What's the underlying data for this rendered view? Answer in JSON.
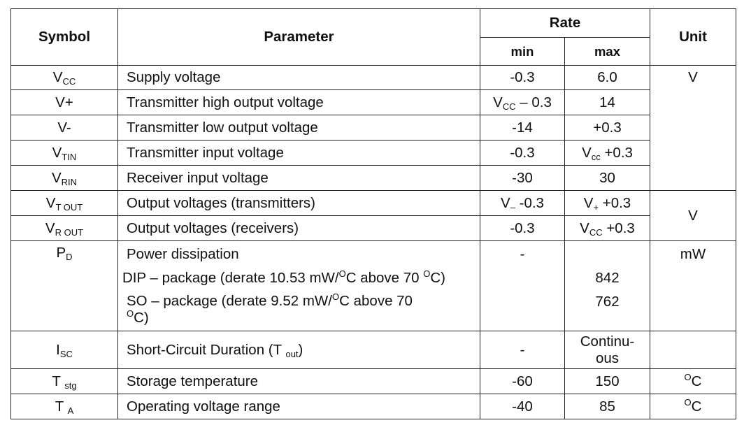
{
  "headers": {
    "symbol": "Symbol",
    "parameter": "Parameter",
    "rate": "Rate",
    "min": "min",
    "max": "max",
    "unit": "Unit"
  },
  "rows": [
    {
      "sym_main": "V",
      "sym_sub": "CC",
      "param": "Supply voltage",
      "min": "-0.3",
      "max": "6.0",
      "unit": "V"
    },
    {
      "sym_main": "V+",
      "param": "Transmitter high output voltage",
      "min_main": "V",
      "min_sub": "CC",
      "min_rest": " – 0.3",
      "max": "14"
    },
    {
      "sym_main": "V-",
      "param": "Transmitter low output voltage",
      "min": "-14",
      "max": "+0.3"
    },
    {
      "sym_main": "V",
      "sym_sub": "TIN",
      "param": "Transmitter input voltage",
      "min": "-0.3",
      "max_main": "V",
      "max_sub": "cc",
      "max_rest": " +0.3"
    },
    {
      "sym_main": "V",
      "sym_sub": "RIN",
      "param": "Receiver input voltage",
      "min": "-30",
      "max": "30"
    },
    {
      "sym_main": "V",
      "sym_sub": "T OUT",
      "param": "Output voltages (transmitters)",
      "min_main": "V",
      "min_sub": "–",
      "min_rest": " -0.3",
      "max_main": "V",
      "max_sub": "+",
      "max_rest": " +0.3",
      "unit": "V"
    },
    {
      "sym_main": "V",
      "sym_sub": "R OUT",
      "param": "Output voltages (receivers)",
      "min": "-0.3",
      "max_main": "V",
      "max_sub": "CC",
      "max_rest": " +0.3"
    },
    {
      "sym_main": "P",
      "sym_sub": "D",
      "param": "Power dissipation",
      "param2_a": "DIP – package (derate 10.53 mW/",
      "param2_sup1": "O",
      "param2_b": "C above 70 ",
      "param2_sup2": "O",
      "param2_c": "C)",
      "param3_a": "SO – package (derate 9.52 mW/",
      "param3_sup1": "O",
      "param3_b": "C above 70",
      "param3_sup2": "O",
      "param3_c": "C)",
      "min": "-",
      "max2": "842",
      "max3": "762",
      "unit": "mW"
    },
    {
      "sym_main": "I",
      "sym_sub": "SC",
      "param_a": "Short-Circuit Duration (T ",
      "param_sub": "out",
      "param_c": ")",
      "min": "-",
      "max_line1": "Continu-",
      "max_line2": "ous"
    },
    {
      "sym_main": "T ",
      "sym_sub": "stg",
      "param": "Storage temperature",
      "min": "-60",
      "max": "150",
      "unit_sup": "O",
      "unit_rest": "C"
    },
    {
      "sym_main": "T ",
      "sym_sub": "A",
      "param": "Operating voltage range",
      "min": "-40",
      "max": "85",
      "unit_sup": "O",
      "unit_rest": "C"
    }
  ]
}
